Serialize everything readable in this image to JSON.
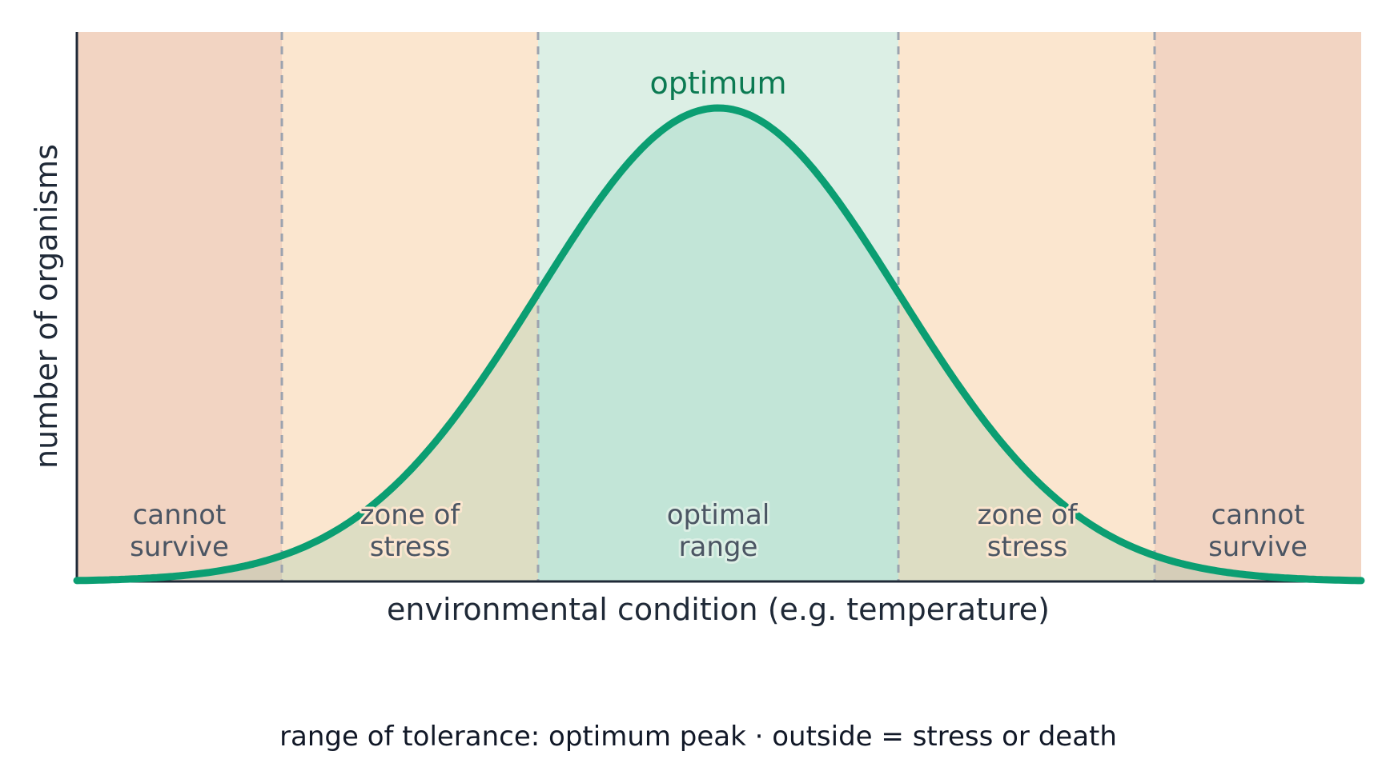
{
  "diagram": {
    "x_axis_label": "environmental condition  (e.g. temperature)",
    "y_axis_label": "number of organisms",
    "peak_label": "optimum",
    "caption": "range of tolerance: optimum peak  ·  outside = stress or death",
    "zones": [
      {
        "id": "cannot-survive-left",
        "line1": "cannot",
        "line2": "survive",
        "color": "#f2d4c2"
      },
      {
        "id": "stress-left",
        "line1": "zone of",
        "line2": "stress",
        "color": "#fbe6cf"
      },
      {
        "id": "optimal-range",
        "line1": "optimal",
        "line2": "range",
        "color": "#dcefe5"
      },
      {
        "id": "stress-right",
        "line1": "zone of",
        "line2": "stress",
        "color": "#fbe6cf"
      },
      {
        "id": "cannot-survive-right",
        "line1": "cannot",
        "line2": "survive",
        "color": "#f2d4c2"
      }
    ],
    "colors": {
      "curve": "#0b9e72",
      "axis": "#1f2937",
      "boundary": "#9ca3af",
      "peak_label": "#0b7a52"
    }
  }
}
